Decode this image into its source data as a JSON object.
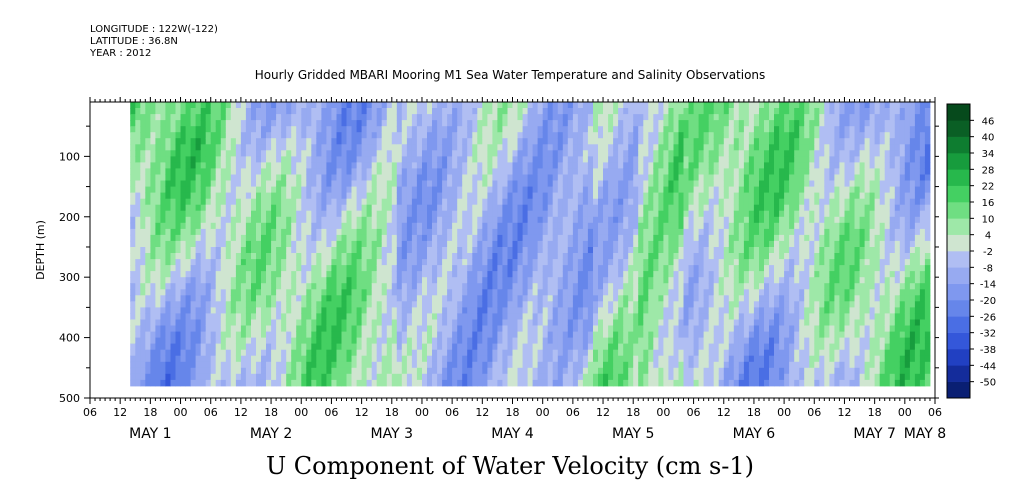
{
  "header": {
    "longitude": "LONGITUDE : 122W(-122)",
    "latitude": "LATITUDE : 36.8N",
    "year": "YEAR : 2012"
  },
  "chart_data": {
    "type": "heatmap",
    "title": "Hourly Gridded MBARI Mooring M1 Sea Water Temperature and Salinity Observations",
    "footer": "U Component of Water Velocity (cm s-1)",
    "ylabel": "DEPTH (m)",
    "xlim_hours": [
      0,
      168
    ],
    "ylim": [
      500,
      10
    ],
    "y_ticks": [
      100,
      200,
      300,
      400,
      500
    ],
    "x_hour_ticks": [
      "06",
      "12",
      "18",
      "00",
      "06",
      "12",
      "18",
      "00",
      "06",
      "12",
      "18",
      "00",
      "06",
      "12",
      "18",
      "00",
      "06",
      "12",
      "18",
      "00",
      "06",
      "12",
      "18",
      "00",
      "06",
      "12",
      "18",
      "00",
      "06"
    ],
    "day_labels": [
      {
        "label": "MAY  1",
        "hour": 12
      },
      {
        "label": "MAY  2",
        "hour": 36
      },
      {
        "label": "MAY  3",
        "hour": 60
      },
      {
        "label": "MAY  4",
        "hour": 84
      },
      {
        "label": "MAY  5",
        "hour": 108
      },
      {
        "label": "MAY  6",
        "hour": 132
      },
      {
        "label": "MAY  7",
        "hour": 156
      },
      {
        "label": "MAY  8",
        "hour": 166
      }
    ],
    "colorbar_levels": [
      -50,
      -44,
      -38,
      -32,
      -26,
      -20,
      -14,
      -8,
      -2,
      4,
      10,
      16,
      22,
      28,
      34,
      40,
      46
    ],
    "colorbar_colors": [
      "#0a1f73",
      "#142c9b",
      "#2140c2",
      "#3457da",
      "#4a6ee4",
      "#6686ea",
      "#7f98ef",
      "#97aaf1",
      "#b0bef3",
      "#cfe5d0",
      "#9ee8a8",
      "#6fde82",
      "#44d062",
      "#27b84c",
      "#179c3d",
      "#0e7d30",
      "#0a5f25",
      "#064a1c"
    ],
    "time_range_hours": [
      8,
      167
    ],
    "depth_range": [
      10,
      480
    ]
  }
}
